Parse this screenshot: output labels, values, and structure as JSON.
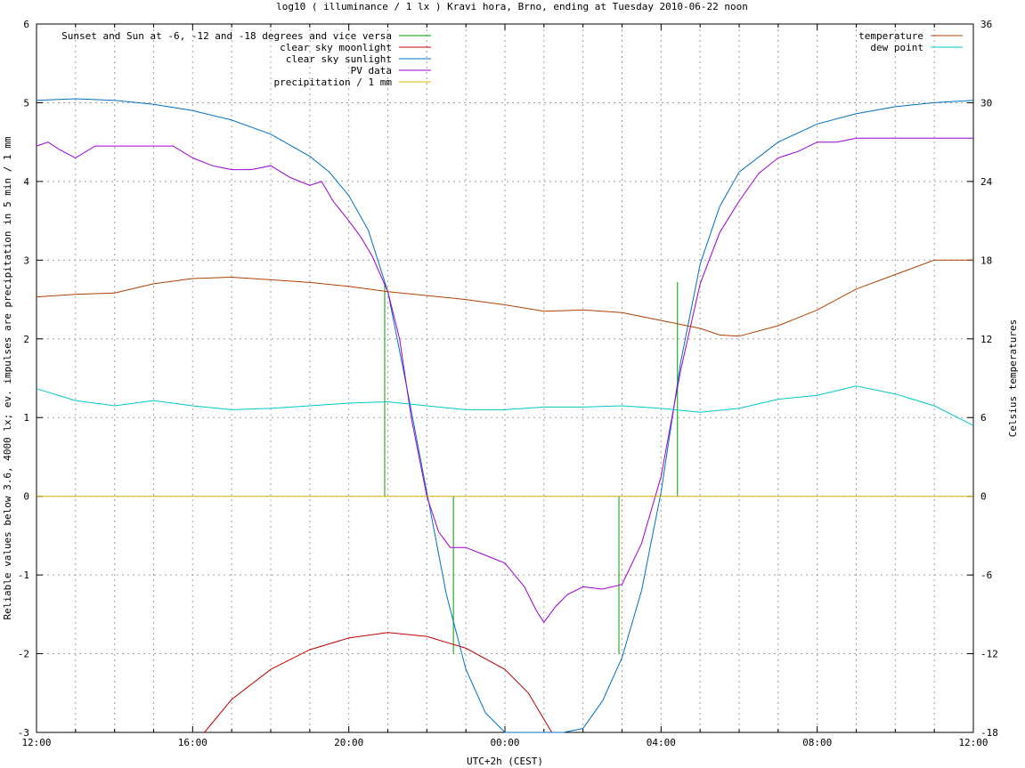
{
  "chart_data": {
    "type": "line",
    "title": "log10 ( illuminance / 1 lx ) Kravi hora, Brno, ending at Tuesday 2010-06-22 noon",
    "xlabel": "UTC+2h (CEST)",
    "ylabel": "Reliable values below 3.6, 4000 lx; ev. impulses are precipitation in 5 min / 1 mm",
    "y2label": "Celsius temperatures",
    "x_ticks": [
      "12:00",
      "16:00",
      "20:00",
      "00:00",
      "04:00",
      "08:00",
      "12:00"
    ],
    "x_tick_hours": [
      0,
      4,
      8,
      12,
      16,
      20,
      24
    ],
    "xlim": [
      0,
      24
    ],
    "ylim": [
      -3,
      6
    ],
    "y_ticks": [
      "-3",
      "-2",
      "-1",
      "0",
      "1",
      "2",
      "3",
      "4",
      "5",
      "6"
    ],
    "y2lim": [
      -18,
      36
    ],
    "y2_ticks": [
      "-18",
      "-12",
      "-6",
      "0",
      "6",
      "12",
      "18",
      "24",
      "30",
      "36"
    ],
    "grid": true,
    "legend_left": "top-left",
    "legend_right": "top-right",
    "series": [
      {
        "name": "Sunset and Sun at -6, -12 and -18 degrees and vice versa",
        "axis": "left",
        "style": "impulses",
        "color": "#00a000",
        "points": [
          [
            8.92,
            2.72
          ],
          [
            10.68,
            -2.0
          ],
          [
            14.92,
            -2.0
          ],
          [
            16.42,
            2.72
          ]
        ]
      },
      {
        "name": "clear sky moonlight",
        "axis": "left",
        "color": "#c00000",
        "points": [
          [
            4.3,
            -3.0
          ],
          [
            5.0,
            -2.58
          ],
          [
            6.0,
            -2.2
          ],
          [
            7.0,
            -1.95
          ],
          [
            8.0,
            -1.8
          ],
          [
            9.0,
            -1.73
          ],
          [
            10.0,
            -1.78
          ],
          [
            11.0,
            -1.93
          ],
          [
            12.0,
            -2.2
          ],
          [
            12.6,
            -2.5
          ],
          [
            13.2,
            -3.0
          ]
        ]
      },
      {
        "name": "clear sky sunlight",
        "axis": "left",
        "color": "#0070c0",
        "points": [
          [
            0,
            5.03
          ],
          [
            1,
            5.05
          ],
          [
            2,
            5.03
          ],
          [
            3,
            4.98
          ],
          [
            4,
            4.9
          ],
          [
            5,
            4.78
          ],
          [
            6,
            4.6
          ],
          [
            7,
            4.32
          ],
          [
            7.5,
            4.12
          ],
          [
            8,
            3.82
          ],
          [
            8.5,
            3.38
          ],
          [
            9,
            2.6
          ],
          [
            9.5,
            1.35
          ],
          [
            10,
            0.05
          ],
          [
            10.5,
            -1.25
          ],
          [
            11,
            -2.2
          ],
          [
            11.5,
            -2.75
          ],
          [
            12,
            -3.0
          ],
          [
            13.5,
            -3.05
          ],
          [
            14,
            -2.95
          ],
          [
            14.5,
            -2.6
          ],
          [
            15,
            -2.05
          ],
          [
            15.5,
            -1.2
          ],
          [
            16,
            0.05
          ],
          [
            16.5,
            1.7
          ],
          [
            17,
            2.95
          ],
          [
            17.5,
            3.68
          ],
          [
            18,
            4.12
          ],
          [
            19,
            4.5
          ],
          [
            20,
            4.73
          ],
          [
            21,
            4.86
          ],
          [
            22,
            4.95
          ],
          [
            23,
            5.0
          ],
          [
            24,
            5.03
          ]
        ]
      },
      {
        "name": "PV data",
        "axis": "left",
        "color": "#9a00d8",
        "points": [
          [
            0,
            4.45
          ],
          [
            0.3,
            4.5
          ],
          [
            0.6,
            4.4
          ],
          [
            1,
            4.3
          ],
          [
            1.5,
            4.45
          ],
          [
            2,
            4.45
          ],
          [
            3,
            4.45
          ],
          [
            3.5,
            4.45
          ],
          [
            4,
            4.3
          ],
          [
            4.5,
            4.2
          ],
          [
            5,
            4.15
          ],
          [
            5.5,
            4.15
          ],
          [
            6,
            4.2
          ],
          [
            6.5,
            4.05
          ],
          [
            7,
            3.95
          ],
          [
            7.3,
            4.0
          ],
          [
            7.6,
            3.75
          ],
          [
            8,
            3.5
          ],
          [
            8.3,
            3.3
          ],
          [
            8.6,
            3.05
          ],
          [
            9,
            2.6
          ],
          [
            9.3,
            2.0
          ],
          [
            9.6,
            1.0
          ],
          [
            10,
            0.0
          ],
          [
            10.3,
            -0.45
          ],
          [
            10.6,
            -0.65
          ],
          [
            11,
            -0.65
          ],
          [
            11.5,
            -0.75
          ],
          [
            12,
            -0.85
          ],
          [
            12.5,
            -1.15
          ],
          [
            12.8,
            -1.45
          ],
          [
            13.0,
            -1.6
          ],
          [
            13.3,
            -1.4
          ],
          [
            13.6,
            -1.25
          ],
          [
            14,
            -1.15
          ],
          [
            14.5,
            -1.18
          ],
          [
            15,
            -1.12
          ],
          [
            15.5,
            -0.6
          ],
          [
            16,
            0.25
          ],
          [
            16.5,
            1.6
          ],
          [
            17,
            2.7
          ],
          [
            17.5,
            3.35
          ],
          [
            18,
            3.75
          ],
          [
            18.5,
            4.1
          ],
          [
            19,
            4.3
          ],
          [
            19.5,
            4.38
          ],
          [
            20,
            4.5
          ],
          [
            20.5,
            4.5
          ],
          [
            21,
            4.55
          ],
          [
            22,
            4.55
          ],
          [
            23,
            4.55
          ],
          [
            24,
            4.55
          ]
        ]
      },
      {
        "name": "precipitation / 1 mm",
        "axis": "left",
        "color": "#e0b000",
        "points": [
          [
            0,
            0
          ],
          [
            24,
            0
          ]
        ]
      },
      {
        "name": "temperature",
        "axis": "right",
        "color": "#b04000",
        "points": [
          [
            0,
            15.2
          ],
          [
            1,
            15.4
          ],
          [
            2,
            15.5
          ],
          [
            3,
            16.2
          ],
          [
            4,
            16.6
          ],
          [
            5,
            16.7
          ],
          [
            6,
            16.5
          ],
          [
            7,
            16.3
          ],
          [
            8,
            16.0
          ],
          [
            9,
            15.6
          ],
          [
            10,
            15.3
          ],
          [
            11,
            15.0
          ],
          [
            12,
            14.6
          ],
          [
            13,
            14.1
          ],
          [
            14,
            14.2
          ],
          [
            15,
            14.0
          ],
          [
            16,
            13.4
          ],
          [
            17,
            12.8
          ],
          [
            17.5,
            12.3
          ],
          [
            18,
            12.2
          ],
          [
            19,
            13.0
          ],
          [
            20,
            14.2
          ],
          [
            21,
            15.8
          ],
          [
            22,
            16.9
          ],
          [
            23,
            18.0
          ],
          [
            24,
            18.0
          ]
        ]
      },
      {
        "name": "dew point",
        "axis": "right",
        "color": "#00c8c8",
        "points": [
          [
            0,
            8.2
          ],
          [
            1,
            7.3
          ],
          [
            2,
            6.9
          ],
          [
            3,
            7.3
          ],
          [
            4,
            6.9
          ],
          [
            5,
            6.6
          ],
          [
            6,
            6.7
          ],
          [
            7,
            6.9
          ],
          [
            8,
            7.1
          ],
          [
            9,
            7.2
          ],
          [
            10,
            6.9
          ],
          [
            11,
            6.6
          ],
          [
            12,
            6.6
          ],
          [
            13,
            6.8
          ],
          [
            14,
            6.8
          ],
          [
            15,
            6.9
          ],
          [
            16,
            6.7
          ],
          [
            17,
            6.4
          ],
          [
            18,
            6.7
          ],
          [
            19,
            7.4
          ],
          [
            20,
            7.7
          ],
          [
            21,
            8.4
          ],
          [
            22,
            7.8
          ],
          [
            23,
            6.9
          ],
          [
            24,
            5.4
          ]
        ]
      }
    ]
  }
}
